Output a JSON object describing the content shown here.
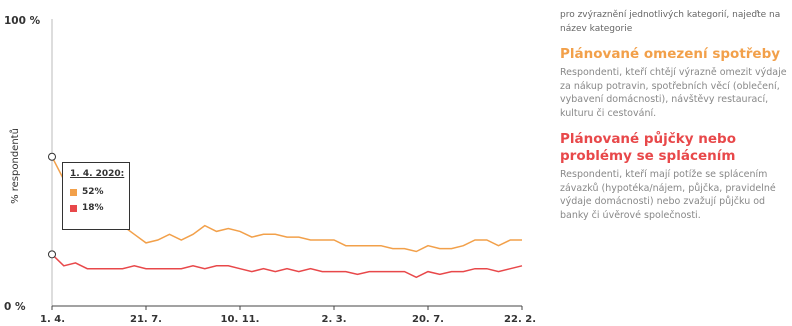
{
  "chart_data": {
    "type": "line",
    "ylabel": "% respondentů",
    "y_ticks": [
      "100 %",
      "0 %"
    ],
    "ylim": [
      0,
      100
    ],
    "x_ticks": [
      "1. 4.",
      "21. 7.",
      "10. 11.",
      "2. 3.",
      "20. 7.",
      "22. 2."
    ],
    "x_tick_indices": [
      0,
      8,
      16,
      24,
      32,
      40
    ],
    "grid": false,
    "series": [
      {
        "name": "Plánované omezení spotřeby",
        "color": "#f2a04a",
        "values": [
          52,
          44,
          38,
          36,
          33,
          31,
          28,
          25,
          22,
          23,
          25,
          23,
          25,
          28,
          26,
          27,
          26,
          24,
          25,
          25,
          24,
          24,
          23,
          23,
          23,
          21,
          21,
          21,
          21,
          20,
          20,
          19,
          21,
          20,
          20,
          21,
          23,
          23,
          21,
          23,
          23
        ]
      },
      {
        "name": "Plánované půjčky nebo problémy se splácením",
        "color": "#e8484a",
        "values": [
          18,
          14,
          15,
          13,
          13,
          13,
          13,
          14,
          13,
          13,
          13,
          13,
          14,
          13,
          14,
          14,
          13,
          12,
          13,
          12,
          13,
          12,
          13,
          12,
          12,
          12,
          11,
          12,
          12,
          12,
          12,
          10,
          12,
          11,
          12,
          12,
          13,
          13,
          12,
          13,
          14
        ]
      }
    ]
  },
  "tooltip": {
    "date": "1. 4. 2020:",
    "values": [
      "52%",
      "18%"
    ]
  },
  "side": {
    "hint": "pro zvýraznění jednotlivých kategorií, najeďte na název kategorie",
    "legend": [
      {
        "title": "Plánované omezení spotřeby",
        "desc": "Respondenti, kteří chtějí výrazně omezit výdaje za nákup potravin, spotřebních věcí (oblečení, vybavení domácnosti), návštěvy restaurací, kulturu či cestování.",
        "color": "#f2a04a"
      },
      {
        "title": "Plánované půjčky nebo problémy se splácením",
        "desc": "Respondenti, kteří mají potíže se splácením závazků (hypotéka/nájem, půjčka, pravidelné výdaje domácnosti) nebo zvažují půjčku od banky či úvěrové společnosti.",
        "color": "#e8484a"
      }
    ]
  }
}
